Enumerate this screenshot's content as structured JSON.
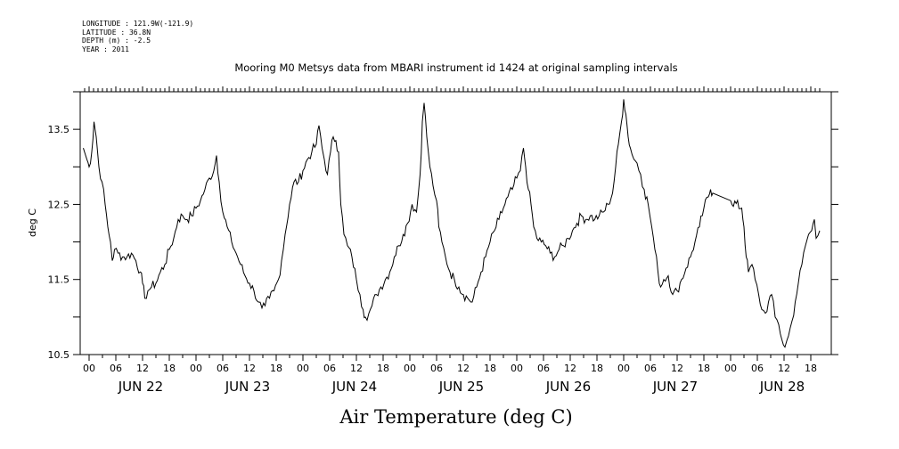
{
  "header": {
    "longitude": "LONGITUDE : 121.9W(-121.9)",
    "latitude": "LATITUDE : 36.8N",
    "depth": "DEPTH (m) : -2.5",
    "year": "YEAR : 2011"
  },
  "colors": {
    "line": "#000000",
    "axis": "#000000",
    "background": "#ffffff"
  },
  "chart_data": {
    "type": "line",
    "title": "Mooring M0 Metsys data from MBARI instrument id 1424 at original sampling intervals",
    "xlabel": "Air Temperature (deg C)",
    "ylabel": "deg C",
    "ylim": [
      10.5,
      14.0
    ],
    "y_ticks": [
      10.5,
      11.5,
      12.5,
      13.5
    ],
    "y_tick_labels": [
      "10.5",
      "11.5",
      "12.5",
      "13.5"
    ],
    "xlim_hours": [
      -1,
      164
    ],
    "x_hour_tick_labels": [
      "00",
      "06",
      "12",
      "18",
      "00",
      "06",
      "12",
      "18",
      "00",
      "06",
      "12",
      "18",
      "00",
      "06",
      "12",
      "18",
      "00",
      "06",
      "12",
      "18",
      "00",
      "06",
      "12",
      "18",
      "00",
      "06",
      "12",
      "18"
    ],
    "x_day_labels": [
      "JUN 22",
      "JUN 23",
      "JUN 24",
      "JUN 25",
      "JUN 26",
      "JUN 27",
      "JUN 28"
    ],
    "grid": false,
    "series": [
      {
        "points": [
          [
            -1.3,
            13.25
          ],
          [
            -0.5,
            13.1
          ],
          [
            0,
            13.0
          ],
          [
            0.6,
            13.2
          ],
          [
            1.1,
            13.6
          ],
          [
            1.6,
            13.4
          ],
          [
            2.2,
            13.0
          ],
          [
            2.9,
            12.8
          ],
          [
            3.6,
            12.5
          ],
          [
            4.2,
            12.2
          ],
          [
            4.8,
            12.0
          ],
          [
            5.2,
            11.75
          ],
          [
            5.7,
            11.9
          ],
          [
            6.5,
            11.85
          ],
          [
            7.5,
            11.8
          ],
          [
            8.5,
            11.8
          ],
          [
            9.5,
            11.85
          ],
          [
            10.5,
            11.75
          ],
          [
            11.5,
            11.6
          ],
          [
            12.0,
            11.45
          ],
          [
            12.5,
            11.25
          ],
          [
            13.2,
            11.35
          ],
          [
            14.0,
            11.4
          ],
          [
            15.0,
            11.45
          ],
          [
            16.0,
            11.6
          ],
          [
            17.0,
            11.7
          ],
          [
            18.0,
            11.9
          ],
          [
            19.0,
            12.05
          ],
          [
            20.0,
            12.3
          ],
          [
            21.0,
            12.35
          ],
          [
            22.0,
            12.3
          ],
          [
            23.0,
            12.35
          ],
          [
            24.0,
            12.45
          ],
          [
            25.0,
            12.55
          ],
          [
            26.0,
            12.7
          ],
          [
            27.0,
            12.85
          ],
          [
            28.0,
            12.95
          ],
          [
            28.6,
            13.15
          ],
          [
            29.2,
            12.8
          ],
          [
            30.0,
            12.4
          ],
          [
            31.0,
            12.2
          ],
          [
            32.0,
            12.0
          ],
          [
            33.0,
            11.85
          ],
          [
            34.0,
            11.7
          ],
          [
            35.0,
            11.55
          ],
          [
            36.0,
            11.45
          ],
          [
            37.0,
            11.35
          ],
          [
            38.0,
            11.2
          ],
          [
            38.8,
            11.12
          ],
          [
            39.5,
            11.15
          ],
          [
            40.5,
            11.25
          ],
          [
            41.5,
            11.35
          ],
          [
            42.5,
            11.5
          ],
          [
            43.2,
            11.75
          ],
          [
            44.0,
            12.1
          ],
          [
            45.0,
            12.5
          ],
          [
            46.0,
            12.8
          ],
          [
            47.0,
            12.8
          ],
          [
            48.0,
            12.95
          ],
          [
            49.0,
            13.1
          ],
          [
            50.0,
            13.2
          ],
          [
            51.0,
            13.3
          ],
          [
            51.6,
            13.55
          ],
          [
            52.3,
            13.25
          ],
          [
            52.8,
            13.1
          ],
          [
            53.5,
            12.9
          ],
          [
            54.2,
            13.2
          ],
          [
            54.8,
            13.4
          ],
          [
            55.4,
            13.35
          ],
          [
            56.0,
            13.2
          ],
          [
            56.5,
            12.5
          ],
          [
            57.2,
            12.1
          ],
          [
            58.0,
            11.95
          ],
          [
            59.0,
            11.8
          ],
          [
            60.0,
            11.5
          ],
          [
            60.8,
            11.3
          ],
          [
            61.5,
            11.1
          ],
          [
            62.0,
            11.0
          ],
          [
            62.8,
            11.05
          ],
          [
            63.5,
            11.15
          ],
          [
            64.5,
            11.3
          ],
          [
            65.5,
            11.4
          ],
          [
            66.5,
            11.5
          ],
          [
            67.5,
            11.6
          ],
          [
            68.5,
            11.8
          ],
          [
            69.5,
            11.95
          ],
          [
            70.5,
            12.1
          ],
          [
            71.5,
            12.25
          ],
          [
            72.5,
            12.5
          ],
          [
            73.5,
            12.4
          ],
          [
            74.3,
            12.9
          ],
          [
            74.8,
            13.6
          ],
          [
            75.2,
            13.85
          ],
          [
            75.8,
            13.4
          ],
          [
            76.5,
            13.0
          ],
          [
            77.2,
            12.75
          ],
          [
            78.0,
            12.55
          ],
          [
            78.5,
            12.2
          ],
          [
            79.2,
            12.0
          ],
          [
            80.0,
            11.8
          ],
          [
            81.0,
            11.6
          ],
          [
            82.0,
            11.5
          ],
          [
            83.0,
            11.4
          ],
          [
            84.0,
            11.3
          ],
          [
            85.0,
            11.25
          ],
          [
            86.0,
            11.2
          ],
          [
            87.0,
            11.4
          ],
          [
            88.0,
            11.6
          ],
          [
            89.0,
            11.8
          ],
          [
            90.0,
            12.0
          ],
          [
            91.0,
            12.15
          ],
          [
            92.0,
            12.3
          ],
          [
            93.0,
            12.45
          ],
          [
            94.0,
            12.6
          ],
          [
            95.0,
            12.7
          ],
          [
            96.0,
            12.85
          ],
          [
            96.8,
            12.95
          ],
          [
            97.5,
            13.25
          ],
          [
            98.0,
            13.0
          ],
          [
            98.6,
            12.7
          ],
          [
            99.2,
            12.5
          ],
          [
            99.8,
            12.2
          ],
          [
            100.5,
            12.05
          ],
          [
            101.5,
            12.0
          ],
          [
            102.5,
            11.95
          ],
          [
            103.5,
            11.85
          ],
          [
            104.5,
            11.8
          ],
          [
            105.5,
            11.9
          ],
          [
            106.5,
            11.95
          ],
          [
            107.5,
            12.05
          ],
          [
            108.5,
            12.15
          ],
          [
            109.5,
            12.25
          ],
          [
            110.5,
            12.35
          ],
          [
            111.5,
            12.3
          ],
          [
            112.5,
            12.35
          ],
          [
            113.5,
            12.3
          ],
          [
            114.5,
            12.35
          ],
          [
            115.5,
            12.4
          ],
          [
            116.5,
            12.5
          ],
          [
            117.5,
            12.65
          ],
          [
            118.2,
            13.0
          ],
          [
            118.8,
            13.3
          ],
          [
            119.5,
            13.6
          ],
          [
            120.0,
            13.9
          ],
          [
            120.5,
            13.7
          ],
          [
            121.0,
            13.4
          ],
          [
            121.5,
            13.25
          ],
          [
            122.3,
            13.1
          ],
          [
            123.0,
            13.05
          ],
          [
            123.8,
            12.9
          ],
          [
            124.6,
            12.7
          ],
          [
            125.5,
            12.5
          ],
          [
            126.3,
            12.2
          ],
          [
            127.0,
            11.9
          ],
          [
            127.7,
            11.6
          ],
          [
            128.3,
            11.4
          ],
          [
            129.0,
            11.5
          ],
          [
            130.0,
            11.55
          ],
          [
            131.0,
            11.3
          ],
          [
            132.0,
            11.35
          ],
          [
            133.0,
            11.5
          ],
          [
            134.0,
            11.65
          ],
          [
            135.0,
            11.8
          ],
          [
            136.0,
            12.0
          ],
          [
            137.0,
            12.2
          ],
          [
            138.0,
            12.45
          ],
          [
            139.0,
            12.6
          ],
          [
            139.5,
            12.7
          ],
          [
            140.0,
            12.65
          ],
          [
            144.0,
            12.55
          ],
          [
            146.5,
            12.45
          ],
          [
            147.0,
            12.2
          ],
          [
            147.5,
            11.8
          ],
          [
            148.0,
            11.6
          ],
          [
            148.8,
            11.7
          ],
          [
            149.5,
            11.5
          ],
          [
            150.3,
            11.3
          ],
          [
            151.0,
            11.1
          ],
          [
            151.8,
            11.05
          ],
          [
            152.5,
            11.2
          ],
          [
            153.2,
            11.3
          ],
          [
            154.0,
            11.0
          ],
          [
            154.8,
            10.9
          ],
          [
            155.5,
            10.7
          ],
          [
            156.2,
            10.6
          ],
          [
            157.0,
            10.75
          ],
          [
            157.8,
            10.95
          ],
          [
            158.5,
            11.2
          ],
          [
            159.2,
            11.45
          ],
          [
            160.0,
            11.7
          ],
          [
            160.8,
            11.95
          ],
          [
            161.5,
            12.1
          ],
          [
            162.2,
            12.15
          ],
          [
            162.8,
            12.3
          ],
          [
            163.2,
            12.05
          ],
          [
            164.0,
            12.15
          ]
        ]
      }
    ]
  }
}
